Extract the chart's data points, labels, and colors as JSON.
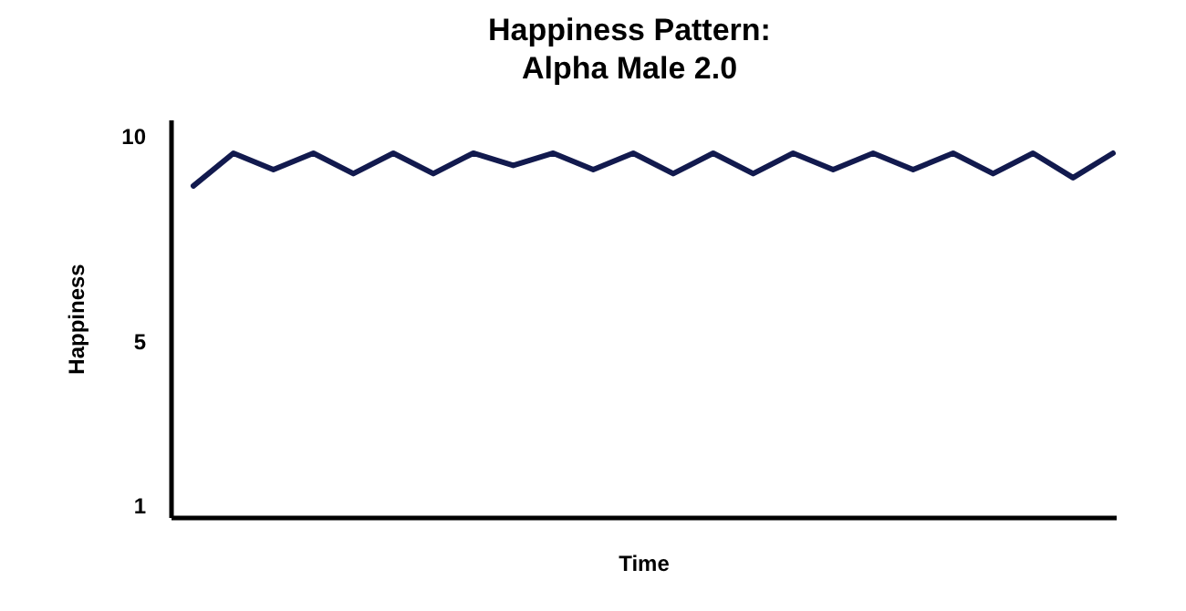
{
  "chart_data": {
    "type": "line",
    "title": "Happiness Pattern:\nAlpha Male 2.0",
    "xlabel": "Time",
    "ylabel": "Happiness",
    "categories": [
      null,
      null,
      null,
      null,
      null,
      null,
      null,
      null,
      null,
      null,
      null,
      null,
      null,
      null,
      null,
      null,
      null,
      null,
      null,
      null,
      null,
      null,
      null,
      null
    ],
    "series": [
      {
        "color": "#121a4e",
        "values": [
          8.8,
          9.6,
          9.2,
          9.6,
          9.1,
          9.6,
          9.1,
          9.6,
          9.3,
          9.6,
          9.2,
          9.6,
          9.1,
          9.6,
          9.1,
          9.6,
          9.2,
          9.6,
          9.2,
          9.6,
          9.1,
          9.6,
          9.0,
          9.6
        ]
      }
    ],
    "ylim": [
      0.7,
      10.4
    ],
    "yticks": [
      1,
      5,
      10
    ],
    "grid": false,
    "marker": "none",
    "line_style": "solid"
  }
}
